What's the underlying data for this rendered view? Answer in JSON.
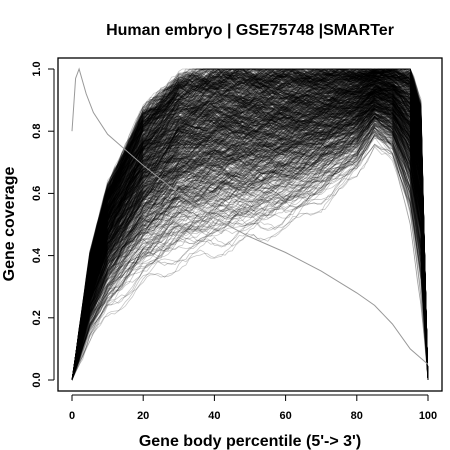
{
  "chart_data": {
    "type": "line",
    "title": "Human embryo | GSE75748 |SMARTer",
    "xlabel": "Gene body percentile (5'-> 3')",
    "ylabel": "Gene coverage",
    "xlim": [
      0,
      100
    ],
    "ylim": [
      0,
      1
    ],
    "xticks": [
      "0",
      "20",
      "40",
      "60",
      "80",
      "100"
    ],
    "yticks": [
      "0.0",
      "0.2",
      "0.4",
      "0.6",
      "0.8",
      "1.0"
    ],
    "line_color": "#000000",
    "grid": false,
    "legend": "none",
    "series_count_estimate": 800,
    "envelope": {
      "x": [
        0,
        5,
        10,
        20,
        30,
        40,
        50,
        60,
        70,
        80,
        85,
        90,
        95,
        98,
        100
      ],
      "upper": [
        0.0,
        0.4,
        0.62,
        0.86,
        0.97,
        1.0,
        1.0,
        1.0,
        1.0,
        1.0,
        1.0,
        1.0,
        1.0,
        0.88,
        0.0
      ],
      "median": [
        0.0,
        0.22,
        0.38,
        0.58,
        0.7,
        0.75,
        0.78,
        0.8,
        0.84,
        0.92,
        0.96,
        0.97,
        0.9,
        0.6,
        0.0
      ],
      "lower": [
        0.0,
        0.12,
        0.2,
        0.3,
        0.36,
        0.4,
        0.44,
        0.48,
        0.55,
        0.65,
        0.75,
        0.7,
        0.5,
        0.25,
        0.0
      ]
    },
    "outlier_series": {
      "x": [
        0,
        1,
        2,
        4,
        6,
        10,
        20,
        30,
        40,
        50,
        60,
        70,
        80,
        85,
        90,
        95,
        100
      ],
      "y": [
        0.8,
        0.97,
        1.0,
        0.92,
        0.86,
        0.79,
        0.69,
        0.6,
        0.52,
        0.46,
        0.41,
        0.35,
        0.28,
        0.24,
        0.18,
        0.1,
        0.05
      ]
    }
  }
}
